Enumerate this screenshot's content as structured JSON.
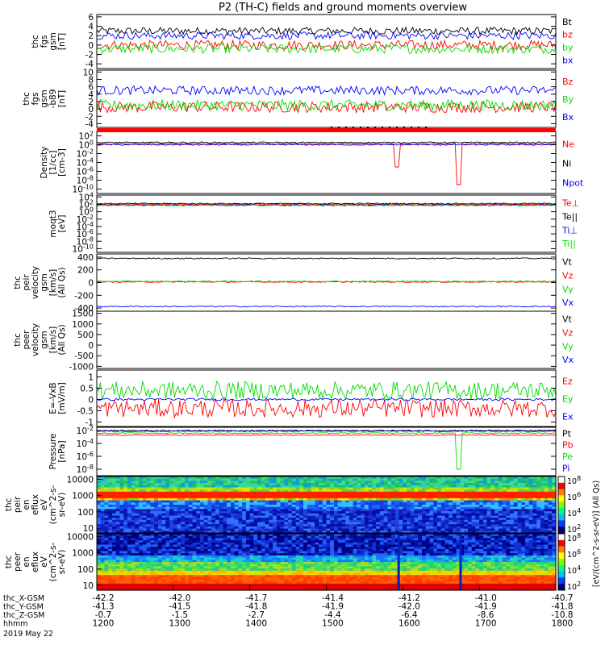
{
  "title": "P2 (TH-C) fields and ground moments overview",
  "chart_data": [
    {
      "type": "line",
      "ylabel": [
        "thc",
        "fgs",
        "gsm",
        "[nT]"
      ],
      "yticks": [
        6,
        4,
        2,
        0,
        -2,
        -4
      ],
      "ylim": [
        -5,
        6.5
      ],
      "series": [
        {
          "name": "Bt",
          "color": "#000000",
          "level": 3.0,
          "noise": 0.8
        },
        {
          "name": "bz",
          "color": "#ff0000",
          "level": 0.0,
          "noise": 1.0
        },
        {
          "name": "by",
          "color": "#00dd00",
          "level": -0.8,
          "noise": 1.0
        },
        {
          "name": "bx",
          "color": "#0000ff",
          "level": 2.0,
          "noise": 0.8
        }
      ]
    },
    {
      "type": "line",
      "ylabel": [
        "thc",
        "fgs",
        "gsm",
        "-b89",
        "[nT]"
      ],
      "yticks": [
        10,
        8,
        6,
        4,
        2,
        0,
        -2,
        -4
      ],
      "ylim": [
        -5,
        10.5
      ],
      "series": [
        {
          "name": "Bz",
          "color": "#ff0000",
          "level": 0.5,
          "noise": 1.5
        },
        {
          "name": "By",
          "color": "#00dd00",
          "level": 1.0,
          "noise": 1.5
        },
        {
          "name": "Bx",
          "color": "#0000ff",
          "level": 5.0,
          "noise": 1.2
        }
      ]
    },
    {
      "type": "line",
      "ylabel": [
        "Density",
        "[1/cc]",
        "[cm-3]"
      ],
      "scale": "log",
      "yticks": [
        "10^2",
        "10^0",
        "10^-2",
        "10^-4",
        "10^-6",
        "10^-8",
        "10^-10"
      ],
      "ylim": [
        -11,
        3
      ],
      "series": [
        {
          "name": "Ne",
          "color": "#ff0000",
          "level": 0.2
        },
        {
          "name": "Ni",
          "color": "#000000",
          "level": 0.5
        },
        {
          "name": "Npot",
          "color": "#0000ff",
          "level": 0.0
        }
      ]
    },
    {
      "type": "line",
      "ylabel": [
        "moqt3",
        "[eV]"
      ],
      "scale": "log",
      "yticks": [
        "10^4",
        "10^2",
        "10^0",
        "10^-2",
        "10^-4",
        "10^-6",
        "10^-8",
        "10^-10"
      ],
      "ylim": [
        -11,
        4.5
      ],
      "series": [
        {
          "name": "Te⊥",
          "color": "#ff0000",
          "level": 2.0
        },
        {
          "name": "Te||",
          "color": "#000000",
          "level": 2.2
        },
        {
          "name": "Ti⊥",
          "color": "#0000ff",
          "level": 1.8
        },
        {
          "name": "Ti||",
          "color": "#00dd00",
          "level": 1.7
        }
      ]
    },
    {
      "type": "line",
      "ylabel": [
        "thc",
        "peir",
        "velocity",
        "gsm",
        "[km/s]",
        "(All Qs)"
      ],
      "yticks": [
        400,
        200,
        0,
        -200,
        -400
      ],
      "ylim": [
        -450,
        450
      ],
      "series": [
        {
          "name": "Vt",
          "color": "#000000",
          "level": 380
        },
        {
          "name": "Vz",
          "color": "#ff0000",
          "level": 10
        },
        {
          "name": "Vy",
          "color": "#00dd00",
          "level": 20
        },
        {
          "name": "Vx",
          "color": "#0000ff",
          "level": -375
        }
      ]
    },
    {
      "type": "line",
      "ylabel": [
        "thc",
        "peer",
        "velocity",
        "gsm",
        "[km/s]",
        "(All Qs)"
      ],
      "yticks": [
        1500,
        1000,
        500,
        0,
        -500,
        -1000
      ],
      "ylim": [
        -1100,
        1600
      ],
      "series": [
        {
          "name": "Vt",
          "color": "#000000"
        },
        {
          "name": "Vz",
          "color": "#ff0000"
        },
        {
          "name": "Vy",
          "color": "#00dd00"
        },
        {
          "name": "Vx",
          "color": "#0000ff"
        }
      ]
    },
    {
      "type": "line",
      "ylabel": [
        "E=-VxB",
        "[mV/m]"
      ],
      "yticks": [
        1.0,
        0.5,
        0.0,
        -0.5,
        -1.0
      ],
      "ylim": [
        -1.2,
        1.3
      ],
      "series": [
        {
          "name": "Ez",
          "color": "#ff0000",
          "level": -0.4,
          "noise": 0.4
        },
        {
          "name": "Ey",
          "color": "#00dd00",
          "level": 0.4,
          "noise": 0.4
        },
        {
          "name": "Ex",
          "color": "#0000ff",
          "level": 0.0,
          "noise": 0.05
        }
      ]
    },
    {
      "type": "line",
      "ylabel": [
        "Pressure",
        "[nPa]"
      ],
      "scale": "log",
      "yticks": [
        "10^-2",
        "10^-4",
        "10^-6",
        "10^-8"
      ],
      "ylim": [
        -9,
        -1.5
      ],
      "series": [
        {
          "name": "Pt",
          "color": "#000000",
          "level": -2.0
        },
        {
          "name": "Pb",
          "color": "#ff0000",
          "level": -2.7
        },
        {
          "name": "Pe",
          "color": "#00dd00",
          "level": -2.4
        },
        {
          "name": "Pi",
          "color": "#0000ff",
          "level": -2.1
        }
      ]
    },
    {
      "type": "heatmap",
      "ylabel": [
        "thc",
        "peir",
        "en",
        "eflux",
        "eV",
        "(cm^2-s-",
        "sr-eV)"
      ],
      "yticks": [
        10000,
        1000,
        100,
        10
      ],
      "ylim": [
        5,
        15000
      ],
      "scale": "log"
    },
    {
      "type": "heatmap",
      "ylabel": [
        "thc",
        "peer",
        "en",
        "eflux",
        "eV",
        "(cm^2-s-",
        "sr-eV)"
      ],
      "yticks": [
        10000,
        1000,
        100,
        10
      ],
      "ylim": [
        5,
        15000
      ],
      "scale": "log"
    }
  ],
  "colorbar": {
    "label": "[eV/(cm^2-s-sr-eV)] (All Qs)",
    "upper_ticks": [
      "10^8",
      "10^6",
      "10^4",
      "10^2"
    ],
    "lower_ticks": [
      "10^8",
      "10^6",
      "10^4",
      "10^2"
    ]
  },
  "xaxis": {
    "rows": [
      {
        "label": "thc_X-GSM",
        "values": [
          "-42.2",
          "-42.0",
          "-41.7",
          "-41.4",
          "-41.2",
          "-41.0",
          "-40.7"
        ]
      },
      {
        "label": "thc_Y-GSM",
        "values": [
          "-41.3",
          "-41.5",
          "-41.8",
          "-41.9",
          "-42.0",
          "-41.9",
          "-41.8"
        ]
      },
      {
        "label": "thc_Z-GSM",
        "values": [
          "-0.7",
          "-1.5",
          "-2.7",
          "-4.4",
          "-6.4",
          "-8.6",
          "-10.8"
        ]
      },
      {
        "label": "hhmm",
        "values": [
          "1200",
          "1300",
          "1400",
          "1500",
          "1600",
          "1700",
          "1800"
        ]
      }
    ],
    "date": "2019 May 22"
  }
}
